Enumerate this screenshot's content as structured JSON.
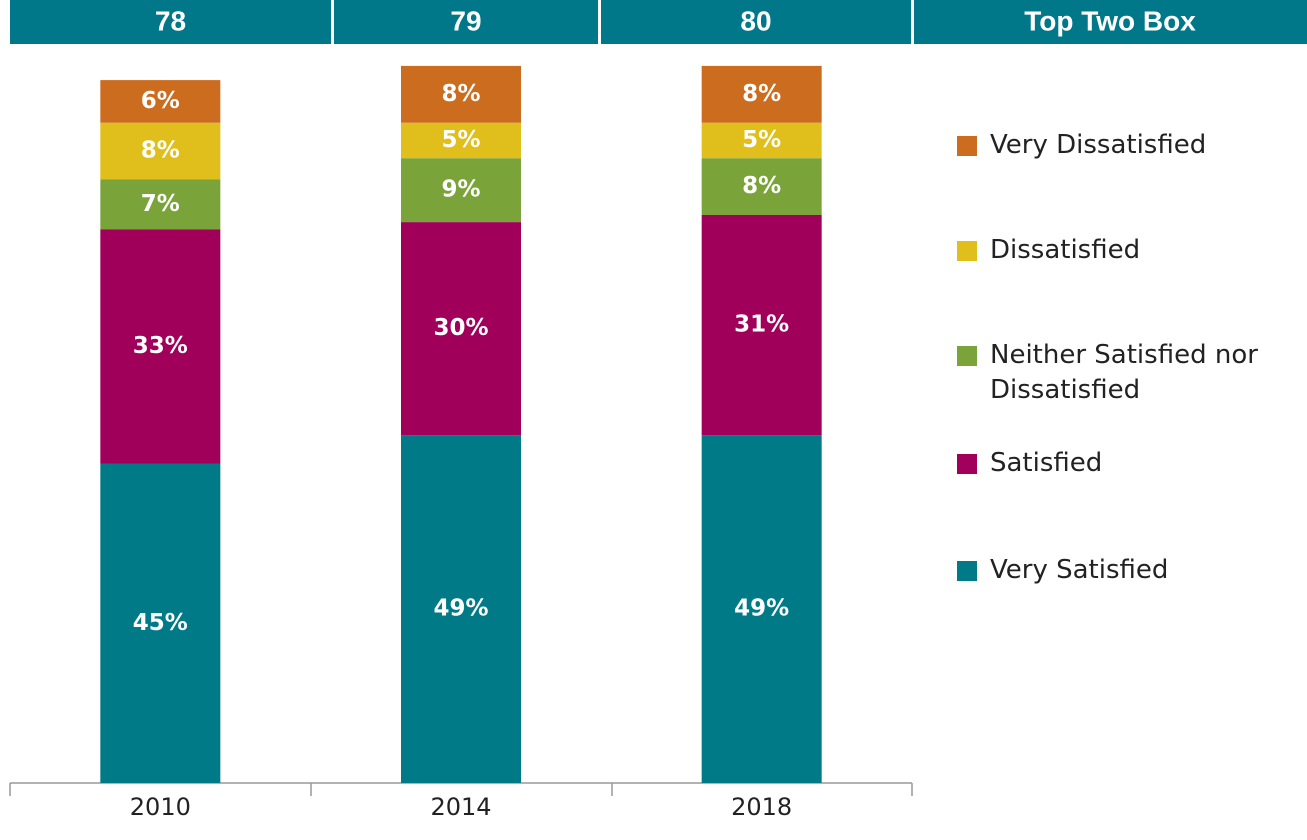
{
  "chart_data": {
    "type": "stacked_bar",
    "top_two_box": {
      "label": "Top Two Box",
      "values": [
        78,
        79,
        80
      ]
    },
    "categories": [
      "2010",
      "2014",
      "2018"
    ],
    "ylim": [
      0,
      100
    ],
    "legend_position": "right",
    "series": [
      {
        "name": "Very Satisfied",
        "color": "#007a87",
        "values": [
          45,
          49,
          49
        ],
        "value_labels": [
          "45%",
          "49%",
          "49%"
        ]
      },
      {
        "name": "Satisfied",
        "color": "#a0005a",
        "values": [
          33,
          30,
          31
        ],
        "value_labels": [
          "33%",
          "30%",
          "31%"
        ]
      },
      {
        "name": "Neither Satisfied nor Dissatisfied",
        "color": "#7aa43a",
        "values": [
          7,
          9,
          8
        ],
        "value_labels": [
          "7%",
          "9%",
          "8%"
        ]
      },
      {
        "name": "Dissatisfied",
        "color": "#e0be1b",
        "values": [
          8,
          5,
          5
        ],
        "value_labels": [
          "8%",
          "5%",
          "5%"
        ]
      },
      {
        "name": "Very Dissatisfied",
        "color": "#cc6c1f",
        "values": [
          6,
          8,
          8
        ],
        "value_labels": [
          "6%",
          "8%",
          "8%"
        ]
      }
    ]
  }
}
